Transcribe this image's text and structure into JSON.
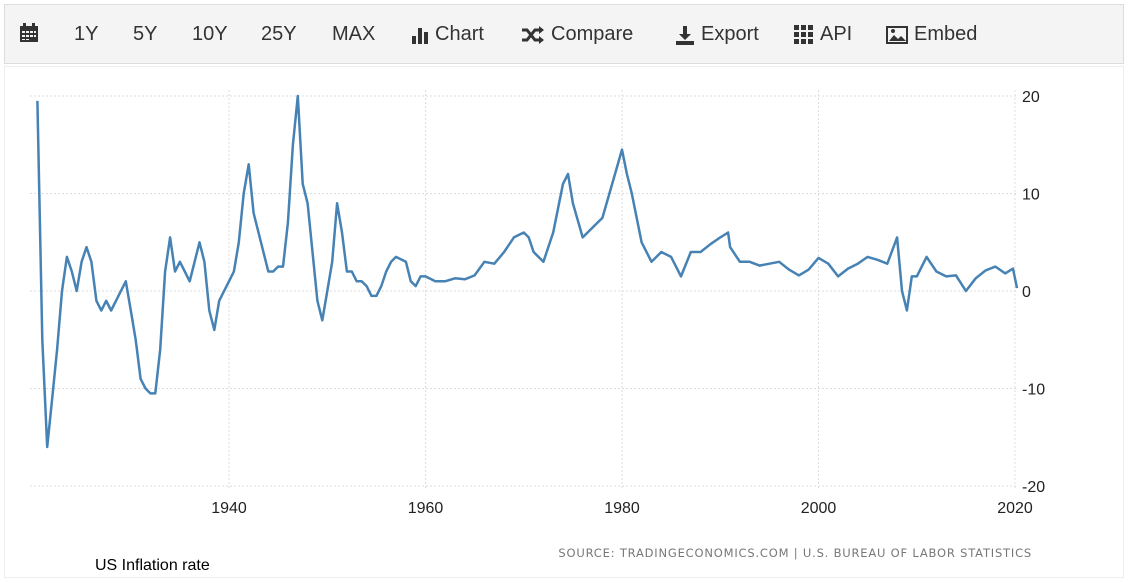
{
  "toolbar": {
    "items": [
      {
        "label": "",
        "icon": "calendar-icon"
      },
      {
        "label": "1Y"
      },
      {
        "label": "5Y"
      },
      {
        "label": "10Y"
      },
      {
        "label": "25Y"
      },
      {
        "label": "MAX"
      },
      {
        "label": "Chart",
        "icon": "bar-chart-icon"
      },
      {
        "label": "Compare",
        "icon": "shuffle-icon"
      },
      {
        "label": "Export",
        "icon": "download-icon"
      },
      {
        "label": "API",
        "icon": "grid-icon"
      },
      {
        "label": "Embed",
        "icon": "image-icon"
      }
    ]
  },
  "caption": "US Inflation rate",
  "chart_data": {
    "type": "line",
    "title": "",
    "source": "SOURCE: TRADINGECONOMICS.COM | U.S. BUREAU OF LABOR STATISTICS",
    "xlim": [
      1920.5,
      2020.3
    ],
    "ylim": [
      -20,
      20
    ],
    "xticks": [
      "1940",
      "1960",
      "1980",
      "2000",
      "2020"
    ],
    "yticks": [
      "20",
      "10",
      "0",
      "-10",
      "-20"
    ],
    "grid": true,
    "y_axis_side": "right",
    "line_color": "#4682b4",
    "series": [
      {
        "points": [
          [
            1920.5,
            19.5
          ],
          [
            1921,
            -5
          ],
          [
            1921.5,
            -16
          ],
          [
            1922,
            -11
          ],
          [
            1922.5,
            -6
          ],
          [
            1923,
            0
          ],
          [
            1923.5,
            3.5
          ],
          [
            1924,
            2
          ],
          [
            1924.5,
            0
          ],
          [
            1925,
            3
          ],
          [
            1925.5,
            4.5
          ],
          [
            1926,
            3
          ],
          [
            1926.5,
            -1
          ],
          [
            1927,
            -2
          ],
          [
            1927.5,
            -1
          ],
          [
            1928,
            -2
          ],
          [
            1928.5,
            -1
          ],
          [
            1929,
            0
          ],
          [
            1929.5,
            1
          ],
          [
            1930,
            -2
          ],
          [
            1930.5,
            -5
          ],
          [
            1931,
            -9
          ],
          [
            1931.5,
            -10
          ],
          [
            1932,
            -10.5
          ],
          [
            1932.5,
            -10.5
          ],
          [
            1933,
            -6
          ],
          [
            1933.5,
            2
          ],
          [
            1934,
            5.5
          ],
          [
            1934.5,
            2
          ],
          [
            1935,
            3
          ],
          [
            1935.5,
            2
          ],
          [
            1936,
            1
          ],
          [
            1936.5,
            3
          ],
          [
            1937,
            5
          ],
          [
            1937.5,
            3
          ],
          [
            1938,
            -2
          ],
          [
            1938.5,
            -4
          ],
          [
            1939,
            -1
          ],
          [
            1939.5,
            0
          ],
          [
            1940,
            1
          ],
          [
            1940.5,
            2
          ],
          [
            1941,
            5
          ],
          [
            1941.5,
            10
          ],
          [
            1942,
            13
          ],
          [
            1942.5,
            8
          ],
          [
            1943,
            6
          ],
          [
            1943.5,
            4
          ],
          [
            1944,
            2
          ],
          [
            1944.5,
            2
          ],
          [
            1945,
            2.5
          ],
          [
            1945.5,
            2.5
          ],
          [
            1946,
            7
          ],
          [
            1946.5,
            15
          ],
          [
            1947,
            20
          ],
          [
            1947.5,
            11
          ],
          [
            1948,
            9
          ],
          [
            1948.5,
            4
          ],
          [
            1949,
            -1
          ],
          [
            1949.5,
            -3
          ],
          [
            1950,
            0
          ],
          [
            1950.5,
            3
          ],
          [
            1951,
            9
          ],
          [
            1951.5,
            6
          ],
          [
            1952,
            2
          ],
          [
            1952.5,
            2
          ],
          [
            1953,
            1
          ],
          [
            1953.5,
            1
          ],
          [
            1954,
            0.5
          ],
          [
            1954.5,
            -0.5
          ],
          [
            1955,
            -0.5
          ],
          [
            1955.5,
            0.5
          ],
          [
            1956,
            2
          ],
          [
            1956.5,
            3
          ],
          [
            1957,
            3.5
          ],
          [
            1958,
            3
          ],
          [
            1958.5,
            1
          ],
          [
            1959,
            0.5
          ],
          [
            1959.5,
            1.5
          ],
          [
            1960,
            1.5
          ],
          [
            1961,
            1
          ],
          [
            1962,
            1
          ],
          [
            1963,
            1.3
          ],
          [
            1964,
            1.2
          ],
          [
            1965,
            1.6
          ],
          [
            1966,
            3
          ],
          [
            1967,
            2.8
          ],
          [
            1968,
            4
          ],
          [
            1969,
            5.5
          ],
          [
            1970,
            6
          ],
          [
            1970.5,
            5.5
          ],
          [
            1971,
            4
          ],
          [
            1972,
            3
          ],
          [
            1973,
            6
          ],
          [
            1974,
            11
          ],
          [
            1974.5,
            12
          ],
          [
            1975,
            9
          ],
          [
            1976,
            5.5
          ],
          [
            1977,
            6.5
          ],
          [
            1978,
            7.5
          ],
          [
            1979,
            11
          ],
          [
            1980,
            14.5
          ],
          [
            1980.5,
            12
          ],
          [
            1981,
            10
          ],
          [
            1982,
            5
          ],
          [
            1983,
            3
          ],
          [
            1984,
            4
          ],
          [
            1985,
            3.5
          ],
          [
            1986,
            1.5
          ],
          [
            1987,
            4
          ],
          [
            1988,
            4
          ],
          [
            1989,
            4.8
          ],
          [
            1990,
            5.5
          ],
          [
            1990.8,
            6
          ],
          [
            1991,
            4.5
          ],
          [
            1992,
            3
          ],
          [
            1993,
            3
          ],
          [
            1994,
            2.6
          ],
          [
            1995,
            2.8
          ],
          [
            1996,
            3
          ],
          [
            1997,
            2.2
          ],
          [
            1998,
            1.6
          ],
          [
            1999,
            2.2
          ],
          [
            2000,
            3.4
          ],
          [
            2001,
            2.8
          ],
          [
            2002,
            1.5
          ],
          [
            2003,
            2.3
          ],
          [
            2004,
            2.8
          ],
          [
            2005,
            3.5
          ],
          [
            2006,
            3.2
          ],
          [
            2007,
            2.8
          ],
          [
            2008,
            5.5
          ],
          [
            2008.5,
            0
          ],
          [
            2009,
            -2
          ],
          [
            2009.5,
            1.5
          ],
          [
            2010,
            1.5
          ],
          [
            2011,
            3.5
          ],
          [
            2012,
            2
          ],
          [
            2013,
            1.5
          ],
          [
            2014,
            1.6
          ],
          [
            2015,
            0
          ],
          [
            2016,
            1.3
          ],
          [
            2017,
            2.1
          ],
          [
            2018,
            2.5
          ],
          [
            2019,
            1.8
          ],
          [
            2019.8,
            2.3
          ],
          [
            2020.2,
            0.3
          ]
        ]
      }
    ]
  }
}
